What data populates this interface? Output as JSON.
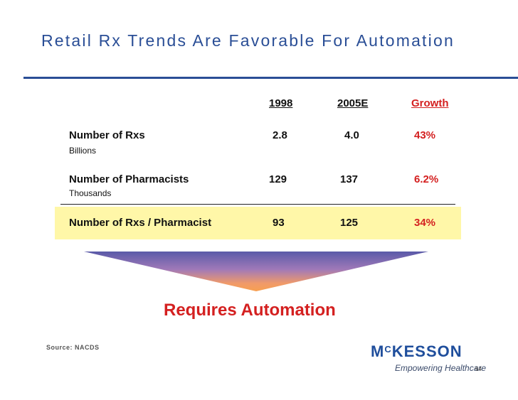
{
  "title": "Retail Rx Trends Are Favorable For Automation",
  "headers": {
    "col1": "1998",
    "col2": "2005E",
    "col3": "Growth"
  },
  "rows": [
    {
      "label": "Number of Rxs",
      "sublabel": "Billions",
      "v1998": "2.8",
      "v2005": "4.0",
      "growth": "43%"
    },
    {
      "label": "Number of Pharmacists",
      "sublabel": "Thousands",
      "v1998": "129",
      "v2005": "137",
      "growth": "6.2%"
    },
    {
      "label": "Number of Rxs / Pharmacist",
      "v1998": "93",
      "v2005": "125",
      "growth": "34%"
    }
  ],
  "conclusion": "Requires Automation",
  "source": "Source: NACDS",
  "logo": {
    "mc_m": "M",
    "mc_c": "C",
    "rest": "KESSON",
    "tagline": "Empowering Healthcare"
  },
  "page_number": "64",
  "colors": {
    "title": "#2a4e96",
    "accent": "#d42020",
    "highlight": "#fff7a8"
  }
}
